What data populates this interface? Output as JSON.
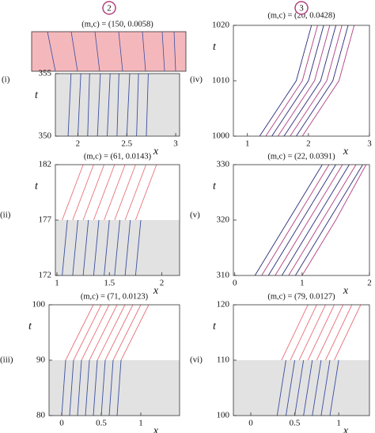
{
  "chart_data": [
    {
      "type": "line",
      "label": "(i)",
      "marker": "2",
      "title": "(m,c) = (150, 0.0058)",
      "xlabel": "x",
      "ylabel": "t",
      "xlim": [
        1.77,
        3.04
      ],
      "xticks": [
        2,
        2.5,
        3
      ],
      "ylim": [
        350,
        355
      ],
      "yticks": [
        350,
        355
      ],
      "shaded_ylim": [
        350,
        355
      ],
      "series": [
        {
          "color": "#3a4fa0",
          "x": [
            1.9,
            1.93,
            null,
            2.0,
            2.03,
            null,
            2.1,
            2.12,
            null,
            2.2,
            2.23,
            null,
            2.3,
            2.33,
            null,
            2.4,
            2.42,
            null,
            2.5,
            2.53,
            null,
            2.6,
            2.62,
            null,
            2.7,
            2.72
          ],
          "values": [
            350,
            355,
            null,
            350,
            355,
            null,
            350,
            355,
            null,
            350,
            355,
            null,
            350,
            355,
            null,
            350,
            355,
            null,
            350,
            355,
            null,
            350,
            355,
            null,
            350,
            355
          ]
        }
      ]
    },
    {
      "type": "line",
      "label": "(ii)",
      "title": "(m,c) = (61, 0.0143)",
      "xlabel": "x",
      "ylabel": "t",
      "xlim": [
        0.985,
        2.17
      ],
      "xticks": [
        1,
        1.5,
        2
      ],
      "ylim": [
        172,
        182
      ],
      "yticks": [
        172,
        177,
        182
      ],
      "shaded_ylim": [
        172,
        177
      ],
      "series": [
        {
          "color": "#e8737a",
          "x": [
            1.05,
            1.25,
            null,
            1.15,
            1.35,
            null,
            1.25,
            1.45,
            null,
            1.35,
            1.55,
            null,
            1.45,
            1.65,
            null,
            1.55,
            1.75,
            null,
            1.65,
            1.85,
            null,
            1.75,
            1.95
          ],
          "values": [
            177,
            182,
            null,
            177,
            182,
            null,
            177,
            182,
            null,
            177,
            182,
            null,
            177,
            182,
            null,
            177,
            182,
            null,
            177,
            182,
            null,
            177,
            182
          ]
        },
        {
          "color": "#3a4fa0",
          "x": [
            1.05,
            1.1,
            null,
            1.15,
            1.2,
            null,
            1.25,
            1.3,
            null,
            1.35,
            1.4,
            null,
            1.45,
            1.5,
            null,
            1.55,
            1.6,
            null,
            1.65,
            1.7,
            null,
            1.75,
            1.8
          ],
          "values": [
            172,
            177,
            null,
            172,
            177,
            null,
            172,
            177,
            null,
            172,
            177,
            null,
            172,
            177,
            null,
            172,
            177,
            null,
            172,
            177,
            null,
            172,
            177
          ]
        }
      ]
    },
    {
      "type": "line",
      "label": "(iii)",
      "title": "(m,c) = (71, 0.0123)",
      "xlabel": "x",
      "ylabel": "t",
      "xlim": [
        -0.16,
        1.49
      ],
      "xticks": [
        0,
        0.5,
        1
      ],
      "ylim": [
        80,
        100
      ],
      "yticks": [
        80,
        90,
        100
      ],
      "shaded_ylim": [
        80,
        90
      ],
      "series": [
        {
          "color": "#e8737a",
          "x": [
            0.05,
            0.4,
            null,
            0.15,
            0.5,
            null,
            0.25,
            0.6,
            null,
            0.35,
            0.7,
            null,
            0.45,
            0.8,
            null,
            0.55,
            0.9,
            null,
            0.65,
            1.0,
            null,
            0.75,
            1.1
          ],
          "values": [
            90,
            100,
            null,
            90,
            100,
            null,
            90,
            100,
            null,
            90,
            100,
            null,
            90,
            100,
            null,
            90,
            100,
            null,
            90,
            100,
            null,
            90,
            100
          ]
        },
        {
          "color": "#3a4fa0",
          "x": [
            0.0,
            0.05,
            null,
            0.1,
            0.15,
            null,
            0.2,
            0.25,
            null,
            0.3,
            0.35,
            null,
            0.4,
            0.45,
            null,
            0.5,
            0.55,
            null,
            0.6,
            0.65,
            null,
            0.7,
            0.75
          ],
          "values": [
            80,
            90,
            null,
            80,
            90,
            null,
            80,
            90,
            null,
            80,
            90,
            null,
            80,
            90,
            null,
            80,
            90,
            null,
            80,
            90,
            null,
            80,
            90
          ]
        }
      ]
    },
    {
      "type": "line",
      "label": "(iv)",
      "marker": "3",
      "title": "(m,c) = (20, 0.0428)",
      "xlabel": "x",
      "ylabel": "t",
      "xlim": [
        0.77,
        3
      ],
      "xticks": [
        1,
        2,
        3
      ],
      "ylim": [
        1000,
        1020
      ],
      "yticks": [
        1000,
        1010,
        1020
      ],
      "series": [
        {
          "color": "#2b2d7a",
          "x": [
            1.2,
            1.8,
            2.05,
            null,
            1.4,
            2.0,
            2.25,
            null,
            1.6,
            2.2,
            2.45,
            null,
            1.8,
            2.4,
            2.65
          ],
          "values": [
            1000,
            1010,
            1020,
            null,
            1000,
            1010,
            1020,
            null,
            1000,
            1010,
            1020,
            null,
            1000,
            1010,
            1020
          ]
        },
        {
          "color": "#b2407f",
          "x": [
            1.3,
            1.9,
            2.15,
            null,
            1.5,
            2.1,
            2.35,
            null,
            1.7,
            2.3,
            2.55,
            null,
            1.9,
            2.5,
            2.75
          ],
          "values": [
            1000,
            1010,
            1020,
            null,
            1000,
            1010,
            1020,
            null,
            1000,
            1010,
            1020,
            null,
            1000,
            1010,
            1020
          ]
        }
      ]
    },
    {
      "type": "line",
      "label": "(v)",
      "title": "(m,c) = (22, 0.0391)",
      "xlabel": "x",
      "ylabel": "t",
      "xlim": [
        -0.02,
        2
      ],
      "xticks": [
        0,
        1,
        2
      ],
      "ylim": [
        310,
        330
      ],
      "yticks": [
        310,
        320,
        330
      ],
      "series": [
        {
          "color": "#2b2d7a",
          "x": [
            0.3,
            0.8,
            1.3,
            null,
            0.5,
            1.0,
            1.5,
            null,
            0.7,
            1.2,
            1.7,
            null,
            0.9,
            1.4,
            1.9
          ],
          "values": [
            310,
            320,
            330,
            null,
            310,
            320,
            330,
            null,
            310,
            320,
            330,
            null,
            310,
            320,
            330
          ]
        },
        {
          "color": "#b2407f",
          "x": [
            0.4,
            0.9,
            1.4,
            null,
            0.6,
            1.1,
            1.6,
            null,
            0.8,
            1.3,
            1.8,
            null,
            1.0,
            1.5,
            1.95
          ],
          "values": [
            310,
            320,
            330,
            null,
            310,
            320,
            330,
            null,
            310,
            320,
            330,
            null,
            310,
            320,
            330
          ]
        }
      ]
    },
    {
      "type": "line",
      "label": "(vi)",
      "title": "(m,c) = (79, 0.0127)",
      "xlabel": "x",
      "ylabel": "t",
      "xlim": [
        -0.198,
        1.35
      ],
      "xticks": [
        0,
        0.5,
        1
      ],
      "ylim": [
        100,
        120
      ],
      "yticks": [
        100,
        110,
        120
      ],
      "shaded_ylim": [
        100,
        110
      ],
      "series": [
        {
          "color": "#e8737a",
          "x": [
            0.35,
            0.65,
            null,
            0.45,
            0.75,
            null,
            0.55,
            0.85,
            null,
            0.65,
            0.95,
            null,
            0.75,
            1.05,
            null,
            0.85,
            1.15,
            null,
            0.95,
            1.25
          ],
          "values": [
            110,
            120,
            null,
            110,
            120,
            null,
            110,
            120,
            null,
            110,
            120,
            null,
            110,
            120,
            null,
            110,
            120,
            null,
            110,
            120
          ]
        },
        {
          "color": "#3a4fa0",
          "x": [
            0.3,
            0.4,
            null,
            0.4,
            0.5,
            null,
            0.5,
            0.6,
            null,
            0.6,
            0.7,
            null,
            0.7,
            0.8,
            null,
            0.8,
            0.9,
            null,
            0.9,
            1.0
          ],
          "values": [
            100,
            110,
            null,
            100,
            110,
            null,
            100,
            110,
            null,
            100,
            110,
            null,
            100,
            110,
            null,
            100,
            110,
            null,
            100,
            110
          ]
        }
      ]
    }
  ]
}
